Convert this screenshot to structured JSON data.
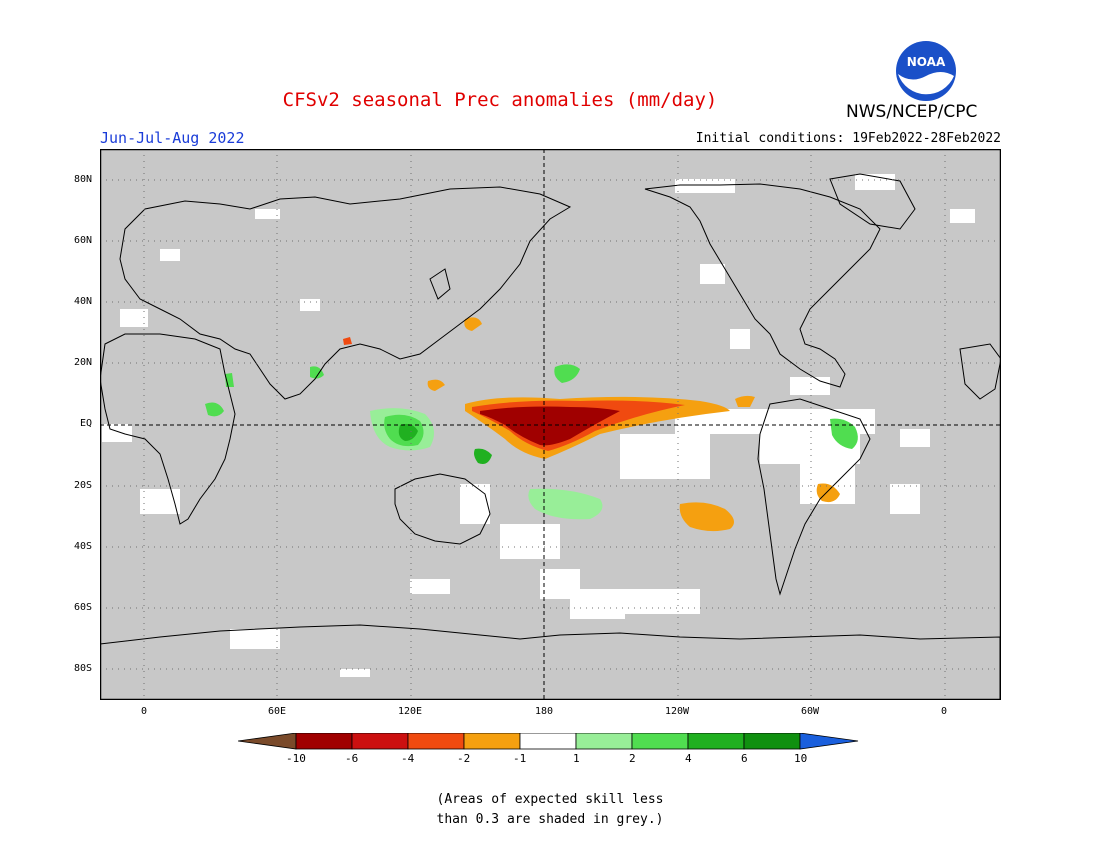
{
  "title": "CFSv2 seasonal Prec anomalies (mm/day)",
  "organization": "NWS/NCEP/CPC",
  "logo_text": "NOAA",
  "season": "Jun-Jul-Aug 2022",
  "initial_conditions": "Initial conditions: 19Feb2022-28Feb2022",
  "lat_labels": [
    "80N",
    "60N",
    "40N",
    "20N",
    "EQ",
    "20S",
    "40S",
    "60S",
    "80S"
  ],
  "lon_labels": [
    "0",
    "60E",
    "120E",
    "180",
    "120W",
    "60W",
    "0"
  ],
  "colorbar": {
    "labels": [
      "-10",
      "-6",
      "-4",
      "-2",
      "-1",
      "1",
      "2",
      "4",
      "6",
      "10"
    ],
    "colors": {
      "lt_minus10": "#7a4a2a",
      "minus10_minus6": "#a00000",
      "minus6_minus4": "#cc1010",
      "minus4_minus2": "#f04a10",
      "minus2_minus1": "#f5a010",
      "minus1_1": "#ffffff",
      "1_2": "#98ee98",
      "2_4": "#50dd50",
      "4_6": "#20b020",
      "6_10": "#109010",
      "gt_10": "#1a5fdd"
    }
  },
  "note_line1": "(Areas of expected skill less",
  "note_line2": "than 0.3 are shaded in grey.)",
  "colors": {
    "map_grey": "#c8c8c8",
    "title_red": "#e00000",
    "season_blue": "#1a3cd8"
  }
}
